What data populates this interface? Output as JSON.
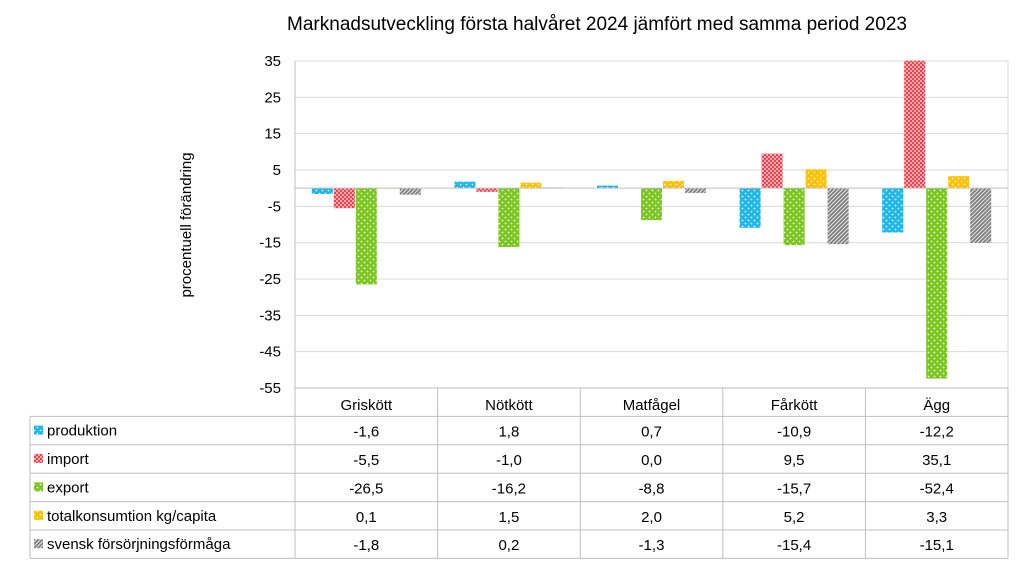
{
  "chart_data": {
    "type": "bar",
    "title": "Marknadsutveckling första halvåret 2024 jämfört med samma period 2023",
    "xlabel": "",
    "ylabel": "procentuell förändring",
    "ylim": [
      -55,
      35
    ],
    "yticks": [
      35,
      25,
      15,
      5,
      -5,
      -15,
      -25,
      -35,
      -45,
      -55
    ],
    "categories": [
      "Griskött",
      "Nötkött",
      "Matfågel",
      "Fårkött",
      "Ägg"
    ],
    "series": [
      {
        "name": "produktion",
        "color": "#1fb6e8",
        "pattern": "dots",
        "values": [
          -1.6,
          1.8,
          0.7,
          -10.9,
          -12.2
        ],
        "labels": [
          "-1,6",
          "1,8",
          "0,7",
          "-10,9",
          "-12,2"
        ]
      },
      {
        "name": "import",
        "color": "#e8434f",
        "pattern": "checker",
        "values": [
          -5.5,
          -1.0,
          0.0,
          9.5,
          35.1
        ],
        "labels": [
          "-5,5",
          "-1,0",
          "0,0",
          "9,5",
          "35,1"
        ]
      },
      {
        "name": "export",
        "color": "#7cc622",
        "pattern": "dots",
        "values": [
          -26.5,
          -16.2,
          -8.8,
          -15.7,
          -52.4
        ],
        "labels": [
          "-26,5",
          "-16,2",
          "-8,8",
          "-15,7",
          "-52,4"
        ]
      },
      {
        "name": "totalkonsumtion kg/capita",
        "color": "#ffc000",
        "pattern": "dots",
        "values": [
          0.1,
          1.5,
          2.0,
          5.2,
          3.3
        ],
        "labels": [
          "0,1",
          "1,5",
          "2,0",
          "5,2",
          "3,3"
        ]
      },
      {
        "name": "svensk försörjningsförmåga",
        "color": "#7f7f7f",
        "pattern": "diag",
        "values": [
          -1.8,
          0.2,
          -1.3,
          -15.4,
          -15.1
        ],
        "labels": [
          "-1,8",
          "0,2",
          "-1,3",
          "-15,4",
          "-15,1"
        ]
      }
    ],
    "grid": true,
    "legend": "data-table-left"
  }
}
